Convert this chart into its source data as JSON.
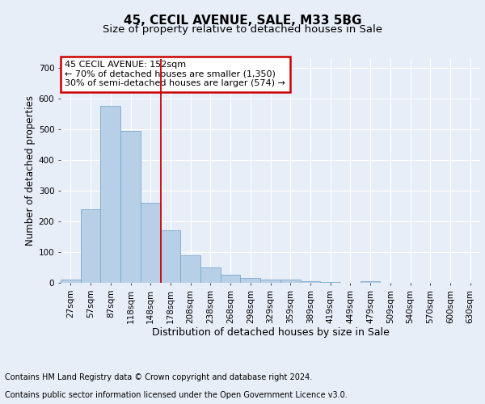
{
  "title1": "45, CECIL AVENUE, SALE, M33 5BG",
  "title2": "Size of property relative to detached houses in Sale",
  "xlabel": "Distribution of detached houses by size in Sale",
  "ylabel": "Number of detached properties",
  "bin_labels": [
    "27sqm",
    "57sqm",
    "87sqm",
    "118sqm",
    "148sqm",
    "178sqm",
    "208sqm",
    "238sqm",
    "268sqm",
    "298sqm",
    "329sqm",
    "359sqm",
    "389sqm",
    "419sqm",
    "449sqm",
    "479sqm",
    "509sqm",
    "540sqm",
    "570sqm",
    "600sqm",
    "630sqm"
  ],
  "bar_heights": [
    10,
    240,
    575,
    495,
    260,
    170,
    90,
    50,
    27,
    15,
    10,
    10,
    5,
    2,
    0,
    5,
    0,
    0,
    0,
    0,
    0
  ],
  "bar_color": "#b8cfe8",
  "bar_edge_color": "#7aaacc",
  "ylim": [
    0,
    730
  ],
  "yticks": [
    0,
    100,
    200,
    300,
    400,
    500,
    600,
    700
  ],
  "red_line_x": 4.52,
  "annotation_text": "45 CECIL AVENUE: 152sqm\n← 70% of detached houses are smaller (1,350)\n30% of semi-detached houses are larger (574) →",
  "annotation_box_color": "#ffffff",
  "annotation_box_edge": "#cc0000",
  "footer_line1": "Contains HM Land Registry data © Crown copyright and database right 2024.",
  "footer_line2": "Contains public sector information licensed under the Open Government Licence v3.0.",
  "background_color": "#e8eef8",
  "plot_bg_color": "#e8eef8",
  "grid_color": "#ffffff",
  "title1_fontsize": 11,
  "title2_fontsize": 9.5,
  "xlabel_fontsize": 9,
  "ylabel_fontsize": 8.5,
  "tick_fontsize": 7.5,
  "footer_fontsize": 7
}
